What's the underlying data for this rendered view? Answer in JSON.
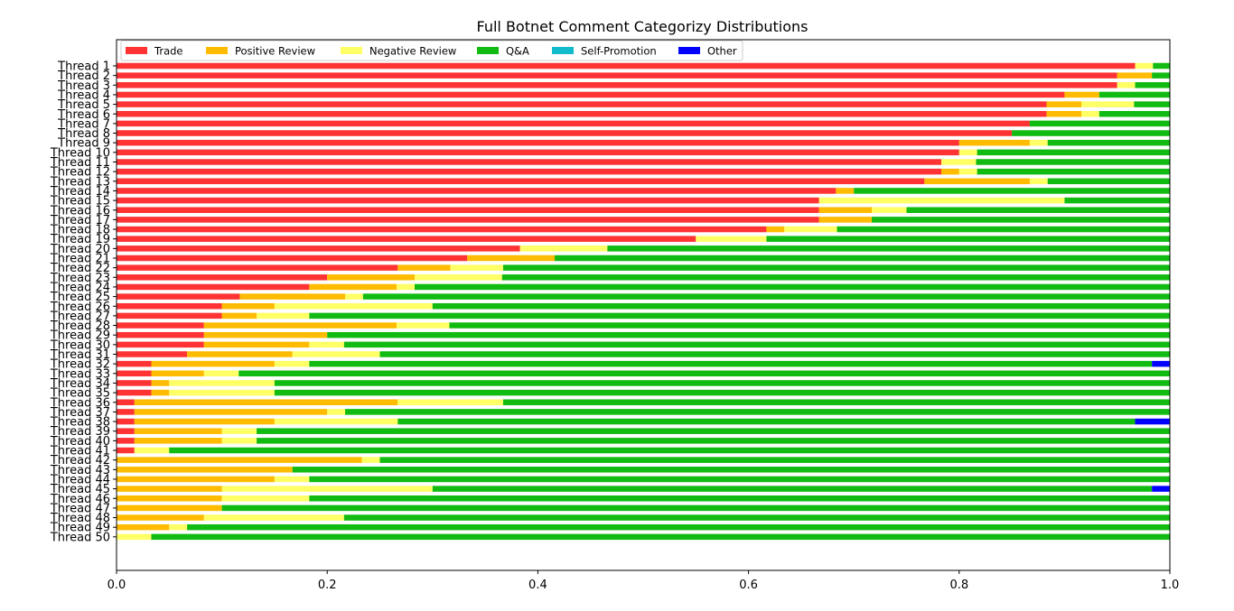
{
  "chart_data": {
    "type": "bar",
    "orientation": "horizontal",
    "stacked": true,
    "title": "Full Botnet Comment Categorizy Distributions",
    "xlabel": "",
    "ylabel": "",
    "xlim": [
      0,
      1
    ],
    "xticks": [
      "0.0",
      "0.2",
      "0.4",
      "0.6",
      "0.8",
      "1.0"
    ],
    "grid": false,
    "legend_position": "top-left",
    "categories": [
      "Thread 1",
      "Thread 2",
      "Thread 3",
      "Thread 4",
      "Thread 5",
      "Thread 6",
      "Thread 7",
      "Thread 8",
      "Thread 9",
      "Thread 10",
      "Thread 11",
      "Thread 12",
      "Thread 13",
      "Thread 14",
      "Thread 15",
      "Thread 16",
      "Thread 17",
      "Thread 18",
      "Thread 19",
      "Thread 20",
      "Thread 21",
      "Thread 22",
      "Thread 23",
      "Thread 24",
      "Thread 25",
      "Thread 26",
      "Thread 27",
      "Thread 28",
      "Thread 29",
      "Thread 30",
      "Thread 31",
      "Thread 32",
      "Thread 33",
      "Thread 34",
      "Thread 35",
      "Thread 36",
      "Thread 37",
      "Thread 38",
      "Thread 39",
      "Thread 40",
      "Thread 41",
      "Thread 42",
      "Thread 43",
      "Thread 44",
      "Thread 45",
      "Thread 46",
      "Thread 47",
      "Thread 48",
      "Thread 49",
      "Thread 50"
    ],
    "series": [
      {
        "name": "Trade",
        "color": "#ff3333",
        "values": [
          0.967,
          0.95,
          0.95,
          0.9,
          0.883,
          0.883,
          0.867,
          0.85,
          0.8,
          0.8,
          0.783,
          0.783,
          0.767,
          0.683,
          0.667,
          0.667,
          0.667,
          0.617,
          0.55,
          0.383,
          0.333,
          0.267,
          0.2,
          0.183,
          0.117,
          0.1,
          0.1,
          0.083,
          0.083,
          0.083,
          0.067,
          0.033,
          0.033,
          0.033,
          0.033,
          0.017,
          0.017,
          0.017,
          0.017,
          0.017,
          0.017,
          0,
          0,
          0,
          0,
          0,
          0,
          0,
          0,
          0
        ]
      },
      {
        "name": "Positive Review",
        "color": "#ffbb00",
        "values": [
          0,
          0.033,
          0,
          0.033,
          0.033,
          0.033,
          0,
          0,
          0.067,
          0,
          0,
          0.017,
          0.1,
          0.017,
          0,
          0.05,
          0.05,
          0.017,
          0,
          0,
          0.083,
          0.05,
          0.083,
          0.083,
          0.1,
          0.05,
          0.033,
          0.183,
          0.117,
          0.1,
          0.1,
          0.117,
          0.05,
          0.017,
          0.017,
          0.25,
          0.183,
          0.133,
          0.083,
          0.083,
          0,
          0.233,
          0.167,
          0.15,
          0.1,
          0.1,
          0.1,
          0.083,
          0.05,
          0
        ]
      },
      {
        "name": "Negative Review",
        "color": "#ffff66",
        "values": [
          0.017,
          0,
          0.017,
          0,
          0.05,
          0.017,
          0,
          0,
          0.017,
          0.017,
          0.033,
          0.017,
          0.017,
          0,
          0.233,
          0.033,
          0,
          0.05,
          0.067,
          0.083,
          0,
          0.05,
          0.083,
          0.017,
          0.017,
          0.15,
          0.05,
          0.05,
          0,
          0.033,
          0.083,
          0.033,
          0.033,
          0.1,
          0.1,
          0.1,
          0.017,
          0.117,
          0.033,
          0.033,
          0.033,
          0.017,
          0,
          0.033,
          0.2,
          0.083,
          0,
          0.133,
          0.017,
          0.033
        ]
      },
      {
        "name": "Q&A",
        "color": "#11bb11",
        "values": [
          0.016,
          0.017,
          0.033,
          0.067,
          0.034,
          0.067,
          0.133,
          0.15,
          0.116,
          0.183,
          0.184,
          0.183,
          0.116,
          0.3,
          0.1,
          0.25,
          0.283,
          0.316,
          0.383,
          0.534,
          0.584,
          0.633,
          0.634,
          0.717,
          0.766,
          0.7,
          0.817,
          0.684,
          0.8,
          0.784,
          0.75,
          0.8,
          0.884,
          0.85,
          0.85,
          0.633,
          0.783,
          0.7,
          0.867,
          0.867,
          0.95,
          0.75,
          0.833,
          0.817,
          0.683,
          0.817,
          0.9,
          0.784,
          0.933,
          0.967
        ]
      },
      {
        "name": "Self-Promotion",
        "color": "#11bbcc",
        "values": [
          0,
          0,
          0,
          0,
          0,
          0,
          0,
          0,
          0,
          0,
          0,
          0,
          0,
          0,
          0,
          0,
          0,
          0,
          0,
          0,
          0,
          0,
          0,
          0,
          0,
          0,
          0,
          0,
          0,
          0,
          0,
          0,
          0,
          0,
          0,
          0,
          0,
          0,
          0,
          0,
          0,
          0,
          0,
          0,
          0,
          0,
          0,
          0,
          0,
          0
        ]
      },
      {
        "name": "Other",
        "color": "#0000ff",
        "values": [
          0,
          0,
          0,
          0,
          0,
          0,
          0,
          0,
          0,
          0,
          0,
          0,
          0,
          0,
          0,
          0,
          0,
          0,
          0,
          0,
          0,
          0,
          0,
          0,
          0,
          0,
          0,
          0,
          0,
          0,
          0,
          0.017,
          0,
          0,
          0,
          0,
          0,
          0.033,
          0,
          0,
          0,
          0,
          0,
          0,
          0.017,
          0,
          0,
          0,
          0,
          0
        ]
      }
    ]
  }
}
